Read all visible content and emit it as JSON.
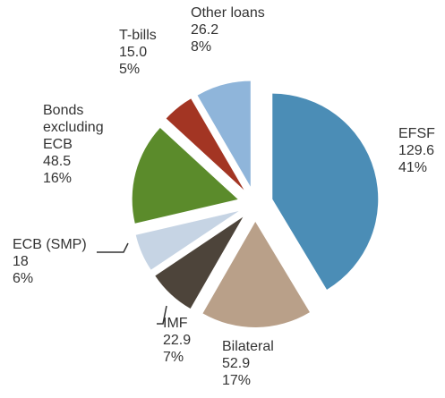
{
  "chart_data": {
    "type": "pie",
    "categories": [
      "EFSF",
      "Bilateral",
      "IMF",
      "ECB (SMP)",
      "Bonds excluding ECB",
      "T-bills",
      "Other loans"
    ],
    "values": [
      129.6,
      52.9,
      22.9,
      18,
      48.5,
      15.0,
      26.2
    ],
    "value_labels": [
      "129.6",
      "52.9",
      "22.9",
      "18",
      "48.5",
      "15.0",
      "26.2"
    ],
    "percentages": [
      41,
      17,
      7,
      6,
      16,
      5,
      8
    ],
    "percentage_labels": [
      "41%",
      "17%",
      "7%",
      "6%",
      "16%",
      "5%",
      "8%"
    ],
    "colors": [
      "#4b8db6",
      "#b9a089",
      "#4d443a",
      "#c6d4e4",
      "#5b8b2b",
      "#a33523",
      "#8fb5da"
    ]
  }
}
